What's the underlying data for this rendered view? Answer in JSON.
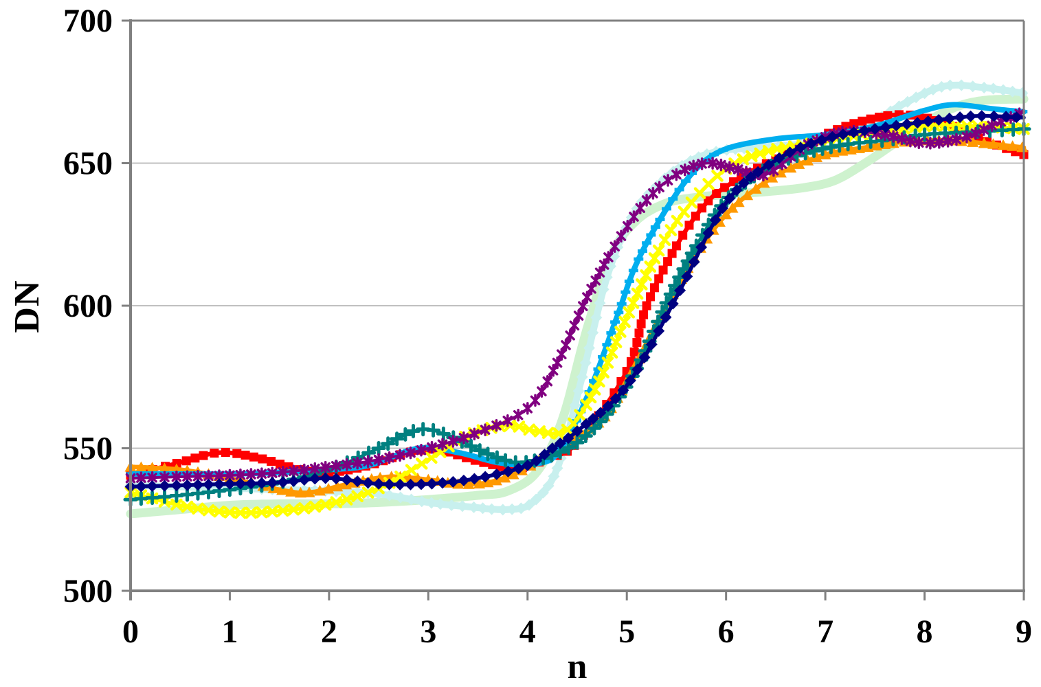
{
  "chart_data": {
    "type": "line",
    "title": "",
    "xlabel": "n",
    "ylabel": "DN",
    "xlim": [
      0,
      9
    ],
    "ylim": [
      500,
      700
    ],
    "x_ticks": [
      0,
      1,
      2,
      3,
      4,
      5,
      6,
      7,
      8,
      9
    ],
    "y_ticks": [
      500,
      550,
      600,
      650,
      700
    ],
    "grid": "horizontal",
    "legend": "none",
    "background_color": "#FFFFFF",
    "axis_color": "#808080",
    "grid_color": "#C0C0C0",
    "marker_spacing_px": 12.5,
    "draw_order": [
      "palegreen",
      "palecyan",
      "red",
      "orange",
      "skyblue",
      "yellow",
      "teal",
      "purple",
      "navy"
    ],
    "series": [
      {
        "name": "palegreen",
        "color": "#CEF2CE",
        "marker": "none",
        "line_width": 13,
        "x": [
          0,
          0.5,
          1,
          1.5,
          2,
          2.5,
          3,
          3.5,
          3.8,
          4.1,
          4.35,
          4.6,
          4.85,
          5.1,
          5.4,
          5.7,
          6,
          6.4,
          6.8,
          7.1,
          7.4,
          7.7,
          8,
          8.3,
          8.6,
          9
        ],
        "y": [
          527,
          528.5,
          530,
          530.5,
          530.5,
          531,
          532,
          533.5,
          535,
          542,
          560,
          592,
          618,
          630,
          636,
          638,
          639,
          640,
          641.5,
          644,
          650,
          657,
          664,
          669.5,
          672,
          672.5
        ]
      },
      {
        "name": "palecyan",
        "color": "#C8F0EE",
        "marker": "diamond",
        "line_width": 10,
        "x": [
          0,
          0.5,
          1,
          1.5,
          2,
          2.5,
          3,
          3.4,
          3.8,
          4.05,
          4.3,
          4.55,
          4.8,
          5.05,
          5.3,
          5.6,
          5.9,
          6.3,
          6.7,
          7,
          7.4,
          7.8,
          8.2,
          8.6,
          9
        ],
        "y": [
          537,
          536.5,
          536,
          535.5,
          535,
          534,
          531,
          529.5,
          528.5,
          531,
          543,
          575,
          610,
          631,
          642,
          650,
          654,
          655.5,
          656.5,
          658,
          663,
          671,
          677,
          676.5,
          674.5
        ]
      },
      {
        "name": "red",
        "color": "#FF0000",
        "marker": "square",
        "line_width": 6.5,
        "x": [
          0,
          0.5,
          0.9,
          1.3,
          1.7,
          2,
          2.4,
          2.8,
          3.1,
          3.5,
          3.9,
          4.2,
          4.5,
          5,
          5.2,
          5.5,
          5.8,
          6.1,
          6.5,
          7,
          7.4,
          7.8,
          8.2,
          8.6,
          9
        ],
        "y": [
          540.5,
          545,
          548.5,
          546.5,
          542.5,
          541.5,
          544,
          548.5,
          549.5,
          545.5,
          543,
          546.5,
          552,
          577,
          600,
          621,
          636,
          644,
          651.5,
          660,
          665,
          667,
          664,
          658,
          653
        ]
      },
      {
        "name": "orange",
        "color": "#FF9900",
        "marker": "triangle",
        "line_width": 6.5,
        "x": [
          0,
          0.5,
          1,
          1.5,
          1.8,
          2.2,
          2.6,
          3,
          3.3,
          3.6,
          3.9,
          4.2,
          4.5,
          4.8,
          5.1,
          5.4,
          5.7,
          6,
          6.3,
          6.6,
          7,
          7.4,
          7.8,
          8.2,
          8.6,
          9
        ],
        "y": [
          543.5,
          542.5,
          539.5,
          535.5,
          534.5,
          537.5,
          540,
          539,
          537.5,
          538,
          541.5,
          547.5,
          554,
          562,
          580,
          600,
          618,
          632,
          641,
          647.5,
          653,
          655.5,
          657.5,
          658,
          657,
          655.5
        ]
      },
      {
        "name": "skyblue",
        "color": "#00AEEF",
        "marker": "dash",
        "line_width": 8,
        "x": [
          0,
          0.5,
          1,
          1.5,
          2,
          2.4,
          2.9,
          3.3,
          3.7,
          4,
          4.3,
          4.6,
          4.9,
          5.1,
          5.4,
          5.7,
          6,
          6.5,
          7,
          7.5,
          8,
          8.3,
          8.7,
          9
        ],
        "y": [
          541,
          541,
          541,
          541.5,
          542.5,
          544,
          550,
          548.5,
          545,
          544.5,
          548,
          568,
          596,
          615,
          634,
          648,
          655,
          658.5,
          660,
          663,
          668.5,
          670.5,
          669,
          668
        ]
      },
      {
        "name": "yellow",
        "color": "#FFFF00",
        "marker": "x",
        "line_width": 5.5,
        "x": [
          0,
          0.5,
          1,
          1.5,
          2,
          2.5,
          3,
          3.4,
          3.8,
          4.1,
          4.4,
          4.7,
          5,
          5.3,
          5.6,
          6,
          6.4,
          6.8,
          7.2,
          7.6,
          8,
          8.5,
          9
        ],
        "y": [
          534.5,
          530,
          527.5,
          528,
          530.5,
          536,
          546,
          554.5,
          558,
          556,
          556.5,
          572,
          596,
          618,
          634,
          648,
          654,
          656.5,
          659,
          661,
          663,
          663,
          662
        ]
      },
      {
        "name": "teal",
        "color": "#008080",
        "marker": "plus",
        "line_width": 4.5,
        "x": [
          0,
          0.5,
          1,
          1.5,
          2,
          2.5,
          2.9,
          3.2,
          3.6,
          3.9,
          4.2,
          4.5,
          4.8,
          5.1,
          5.4,
          5.7,
          6,
          6.4,
          6.8,
          7.2,
          7.6,
          8,
          8.5,
          9
        ],
        "y": [
          532,
          533.5,
          535.5,
          538,
          542.5,
          550,
          556.5,
          554.5,
          548,
          545,
          547,
          552,
          562,
          578,
          601,
          621,
          637,
          648,
          653.5,
          656.5,
          658,
          660,
          661,
          662
        ]
      },
      {
        "name": "purple",
        "color": "#800080",
        "marker": "star",
        "line_width": 4,
        "x": [
          0,
          0.5,
          1,
          1.5,
          2,
          2.5,
          3,
          3.5,
          4,
          4.3,
          4.6,
          4.9,
          5.2,
          5.5,
          5.8,
          6.1,
          6.4,
          6.8,
          7.2,
          7.6,
          8,
          8.4,
          8.7,
          9
        ],
        "y": [
          539.5,
          540,
          540.5,
          541.5,
          543.5,
          546,
          550,
          555.5,
          564,
          580,
          603,
          622,
          637,
          646,
          650,
          648,
          646,
          656,
          661,
          660,
          657,
          659,
          663.5,
          668
        ]
      },
      {
        "name": "navy",
        "color": "#000080",
        "marker": "diamond",
        "line_width": 5.5,
        "x": [
          0,
          0.5,
          1,
          1.5,
          2,
          2.5,
          3,
          3.5,
          4,
          4.25,
          4.5,
          5,
          5.5,
          6,
          6.5,
          7,
          7.5,
          8,
          8.5,
          9
        ],
        "y": [
          536.5,
          537,
          537.5,
          538,
          539.5,
          537.5,
          537.5,
          539.5,
          544,
          550,
          556,
          572,
          603,
          636,
          651,
          658.5,
          662,
          664.5,
          666.5,
          666
        ]
      }
    ]
  }
}
